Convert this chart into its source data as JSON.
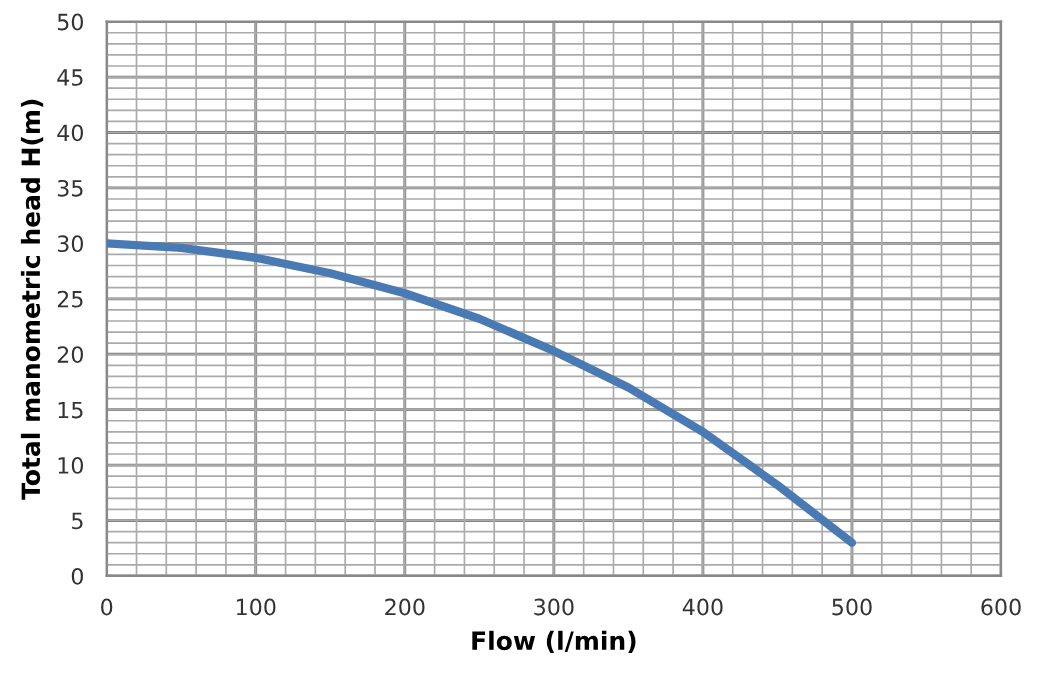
{
  "chart_data": {
    "type": "line",
    "xlabel": "Flow (l/min)",
    "ylabel": "Total manometric head H(m)",
    "x": [
      0,
      50,
      100,
      150,
      200,
      250,
      300,
      350,
      400,
      450,
      500
    ],
    "series": [
      {
        "color": "#4a7ab4",
        "values": [
          30,
          29.6,
          28.7,
          27.3,
          25.5,
          23.2,
          20.3,
          17.0,
          13.0,
          8.2,
          3.0
        ]
      }
    ],
    "xlim": [
      0,
      600
    ],
    "xticks": [
      0,
      100,
      200,
      300,
      400,
      500,
      600
    ],
    "ylim": [
      0,
      50
    ],
    "yticks": [
      0,
      5,
      10,
      15,
      20,
      25,
      30,
      35,
      40,
      45,
      50
    ],
    "grid": true,
    "legend": false,
    "marker": "none",
    "line_style": "solid"
  }
}
